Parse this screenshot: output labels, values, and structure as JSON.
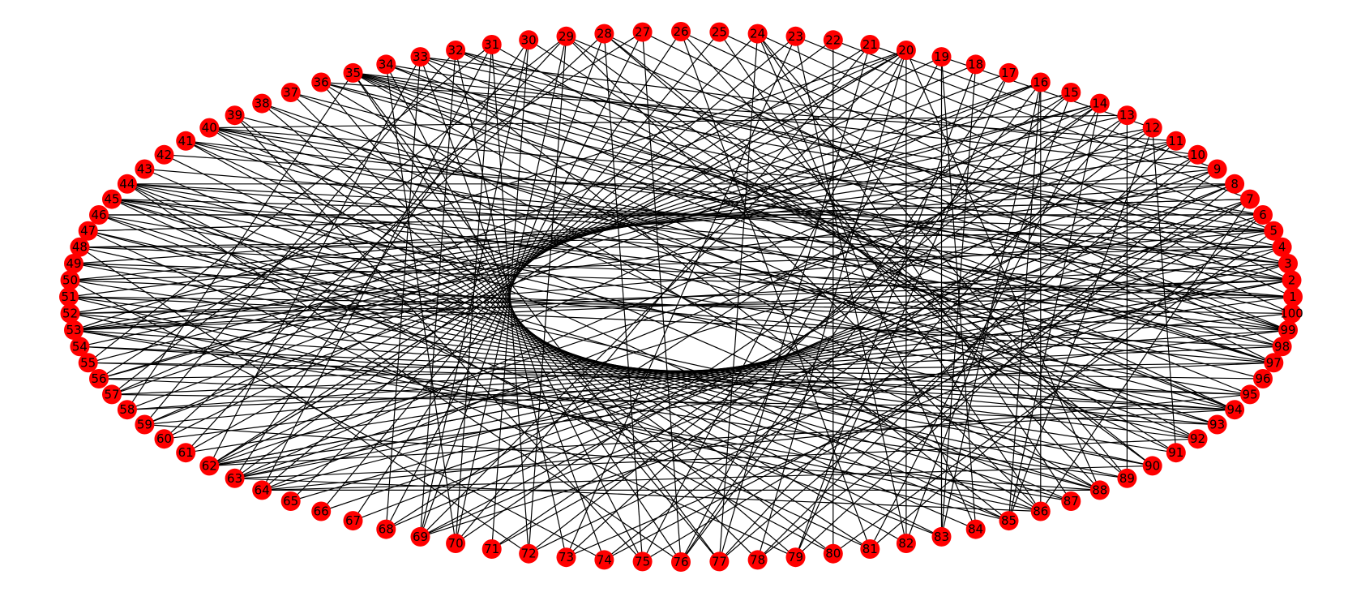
{
  "graph": {
    "node_color": "#ff0000",
    "edge_color": "#000000",
    "label_color": "#000000",
    "nodes": [
      "1",
      "2",
      "3",
      "4",
      "5",
      "6",
      "7",
      "8",
      "9",
      "10",
      "11",
      "12",
      "13",
      "14",
      "15",
      "16",
      "17",
      "18",
      "19",
      "20",
      "21",
      "22",
      "23",
      "24",
      "25",
      "26",
      "27",
      "28",
      "29",
      "30",
      "31",
      "32",
      "33",
      "34",
      "35",
      "36",
      "37",
      "38",
      "39",
      "40",
      "41",
      "42",
      "43",
      "44",
      "45",
      "46",
      "47",
      "48",
      "49",
      "50",
      "51",
      "52",
      "53",
      "54",
      "55",
      "56",
      "57",
      "58",
      "59",
      "60",
      "61",
      "62",
      "63",
      "64",
      "65",
      "66",
      "67",
      "68",
      "69",
      "70",
      "71",
      "72",
      "73",
      "74",
      "75",
      "76",
      "77",
      "78",
      "79",
      "80",
      "81",
      "82",
      "83",
      "84",
      "85",
      "86",
      "87",
      "88",
      "89",
      "90",
      "91",
      "92",
      "93",
      "94",
      "95",
      "96",
      "97",
      "98",
      "99",
      "100"
    ],
    "edges": [
      [
        27,
        76
      ],
      [
        22,
        80
      ],
      [
        16,
        86
      ],
      [
        1,
        52
      ],
      [
        100,
        51
      ],
      [
        3,
        53
      ],
      [
        2,
        53
      ],
      [
        4,
        50
      ],
      [
        5,
        48
      ],
      [
        1,
        49
      ],
      [
        20,
        69
      ],
      [
        21,
        70
      ],
      [
        14,
        72
      ],
      [
        12,
        74
      ],
      [
        10,
        77
      ],
      [
        8,
        78
      ],
      [
        7,
        75
      ],
      [
        6,
        81
      ],
      [
        9,
        68
      ],
      [
        11,
        69
      ],
      [
        13,
        71
      ],
      [
        15,
        73
      ],
      [
        17,
        76
      ],
      [
        18,
        79
      ],
      [
        19,
        83
      ],
      [
        23,
        82
      ],
      [
        24,
        84
      ],
      [
        25,
        86
      ],
      [
        26,
        88
      ],
      [
        28,
        89
      ],
      [
        29,
        90
      ],
      [
        30,
        91
      ],
      [
        31,
        92
      ],
      [
        32,
        94
      ],
      [
        33,
        95
      ],
      [
        34,
        97
      ],
      [
        35,
        99
      ],
      [
        36,
        100
      ],
      [
        37,
        98
      ],
      [
        38,
        93
      ],
      [
        39,
        96
      ],
      [
        40,
        87
      ],
      [
        41,
        85
      ],
      [
        42,
        5
      ],
      [
        43,
        3
      ],
      [
        44,
        2
      ],
      [
        45,
        1
      ],
      [
        46,
        6
      ],
      [
        47,
        7
      ],
      [
        48,
        4
      ],
      [
        49,
        8
      ],
      [
        50,
        9
      ],
      [
        51,
        10
      ],
      [
        52,
        11
      ],
      [
        53,
        12
      ],
      [
        54,
        13
      ],
      [
        55,
        14
      ],
      [
        56,
        15
      ],
      [
        57,
        16
      ],
      [
        58,
        17
      ],
      [
        59,
        18
      ],
      [
        60,
        19
      ],
      [
        61,
        20
      ],
      [
        62,
        21
      ],
      [
        63,
        22
      ],
      [
        64,
        23
      ],
      [
        65,
        24
      ],
      [
        66,
        25
      ],
      [
        67,
        26
      ],
      [
        68,
        27
      ],
      [
        69,
        28
      ],
      [
        70,
        29
      ],
      [
        71,
        30
      ],
      [
        72,
        31
      ],
      [
        73,
        32
      ],
      [
        74,
        33
      ],
      [
        75,
        34
      ],
      [
        76,
        35
      ],
      [
        77,
        36
      ],
      [
        78,
        37
      ],
      [
        79,
        38
      ],
      [
        80,
        39
      ],
      [
        81,
        40
      ],
      [
        82,
        41
      ],
      [
        83,
        42
      ],
      [
        84,
        43
      ],
      [
        85,
        44
      ],
      [
        86,
        45
      ],
      [
        87,
        46
      ],
      [
        88,
        47
      ],
      [
        89,
        48
      ],
      [
        90,
        49
      ],
      [
        91,
        50
      ],
      [
        92,
        51
      ],
      [
        93,
        52
      ],
      [
        94,
        53
      ],
      [
        95,
        54
      ],
      [
        96,
        55
      ],
      [
        97,
        56
      ],
      [
        98,
        57
      ],
      [
        99,
        58
      ],
      [
        100,
        59
      ],
      [
        1,
        60
      ],
      [
        2,
        61
      ],
      [
        3,
        62
      ],
      [
        4,
        63
      ],
      [
        5,
        64
      ],
      [
        6,
        65
      ],
      [
        7,
        66
      ],
      [
        8,
        67
      ],
      [
        35,
        2
      ],
      [
        35,
        5
      ],
      [
        35,
        97
      ],
      [
        35,
        94
      ],
      [
        35,
        88
      ],
      [
        35,
        77
      ],
      [
        32,
        99
      ],
      [
        32,
        3
      ],
      [
        33,
        4
      ],
      [
        34,
        6
      ],
      [
        20,
        62
      ],
      [
        20,
        57
      ],
      [
        20,
        53
      ],
      [
        16,
        62
      ],
      [
        16,
        59
      ],
      [
        14,
        63
      ],
      [
        14,
        56
      ],
      [
        12,
        64
      ],
      [
        11,
        62
      ],
      [
        9,
        63
      ],
      [
        62,
        94
      ],
      [
        62,
        99
      ],
      [
        62,
        3
      ],
      [
        62,
        20
      ],
      [
        63,
        2
      ],
      [
        63,
        92
      ],
      [
        64,
        95
      ],
      [
        64,
        90
      ],
      [
        63,
        86
      ],
      [
        64,
        88
      ],
      [
        44,
        97
      ],
      [
        45,
        99
      ],
      [
        45,
        95
      ],
      [
        45,
        88
      ],
      [
        46,
        94
      ],
      [
        47,
        90
      ],
      [
        48,
        1
      ],
      [
        49,
        97
      ],
      [
        50,
        99
      ],
      [
        51,
        98
      ],
      [
        53,
        5
      ],
      [
        53,
        89
      ],
      [
        53,
        8
      ],
      [
        52,
        2
      ],
      [
        54,
        94
      ],
      [
        55,
        95
      ],
      [
        56,
        93
      ],
      [
        57,
        94
      ],
      [
        58,
        97
      ],
      [
        59,
        88
      ],
      [
        28,
        75
      ],
      [
        29,
        72
      ],
      [
        30,
        69
      ],
      [
        31,
        70
      ],
      [
        32,
        69
      ],
      [
        33,
        68
      ],
      [
        34,
        70
      ],
      [
        26,
        81
      ],
      [
        24,
        77
      ],
      [
        23,
        73
      ],
      [
        21,
        77
      ],
      [
        20,
        78
      ],
      [
        19,
        76
      ],
      [
        18,
        83
      ],
      [
        17,
        79
      ],
      [
        16,
        85
      ],
      [
        15,
        82
      ],
      [
        14,
        85
      ],
      [
        13,
        89
      ],
      [
        12,
        91
      ],
      [
        40,
        6
      ],
      [
        40,
        13
      ],
      [
        40,
        99
      ],
      [
        41,
        98
      ],
      [
        39,
        75
      ],
      [
        38,
        88
      ],
      [
        37,
        92
      ],
      [
        36,
        86
      ],
      [
        36,
        97
      ],
      [
        34,
        94
      ],
      [
        29,
        99
      ],
      [
        28,
        97
      ],
      [
        27,
        98
      ],
      [
        26,
        100
      ],
      [
        25,
        1
      ],
      [
        24,
        2
      ],
      [
        23,
        5
      ],
      [
        22,
        7
      ],
      [
        21,
        9
      ],
      [
        19,
        12
      ],
      [
        69,
        3
      ],
      [
        69,
        8
      ],
      [
        70,
        14
      ],
      [
        68,
        15
      ],
      [
        71,
        10
      ],
      [
        72,
        7
      ],
      [
        73,
        4
      ],
      [
        74,
        6
      ],
      [
        75,
        20
      ],
      [
        76,
        16
      ],
      [
        77,
        13
      ],
      [
        78,
        11
      ],
      [
        79,
        9
      ],
      [
        80,
        5
      ],
      [
        81,
        14
      ],
      [
        82,
        20
      ],
      [
        83,
        16
      ],
      [
        84,
        19
      ],
      [
        85,
        12
      ],
      [
        86,
        7
      ],
      [
        62,
        33
      ],
      [
        63,
        30
      ],
      [
        64,
        31
      ],
      [
        61,
        29
      ],
      [
        60,
        28
      ],
      [
        59,
        32
      ],
      [
        58,
        35
      ],
      [
        57,
        29
      ],
      [
        56,
        27
      ],
      [
        55,
        31
      ],
      [
        44,
        76
      ],
      [
        44,
        80
      ],
      [
        45,
        81
      ],
      [
        46,
        83
      ],
      [
        47,
        79
      ],
      [
        48,
        72
      ],
      [
        50,
        74
      ],
      [
        51,
        85
      ],
      [
        52,
        86
      ],
      [
        53,
        87
      ],
      [
        2,
        40
      ],
      [
        3,
        41
      ],
      [
        4,
        44
      ],
      [
        5,
        45
      ],
      [
        6,
        46
      ],
      [
        7,
        47
      ],
      [
        8,
        44
      ],
      [
        9,
        35
      ],
      [
        10,
        33
      ],
      [
        11,
        36
      ],
      [
        94,
        40
      ],
      [
        93,
        41
      ],
      [
        92,
        44
      ],
      [
        91,
        35
      ],
      [
        90,
        28
      ],
      [
        89,
        24
      ],
      [
        88,
        20
      ],
      [
        87,
        24
      ],
      [
        86,
        29
      ],
      [
        85,
        33
      ]
    ]
  }
}
